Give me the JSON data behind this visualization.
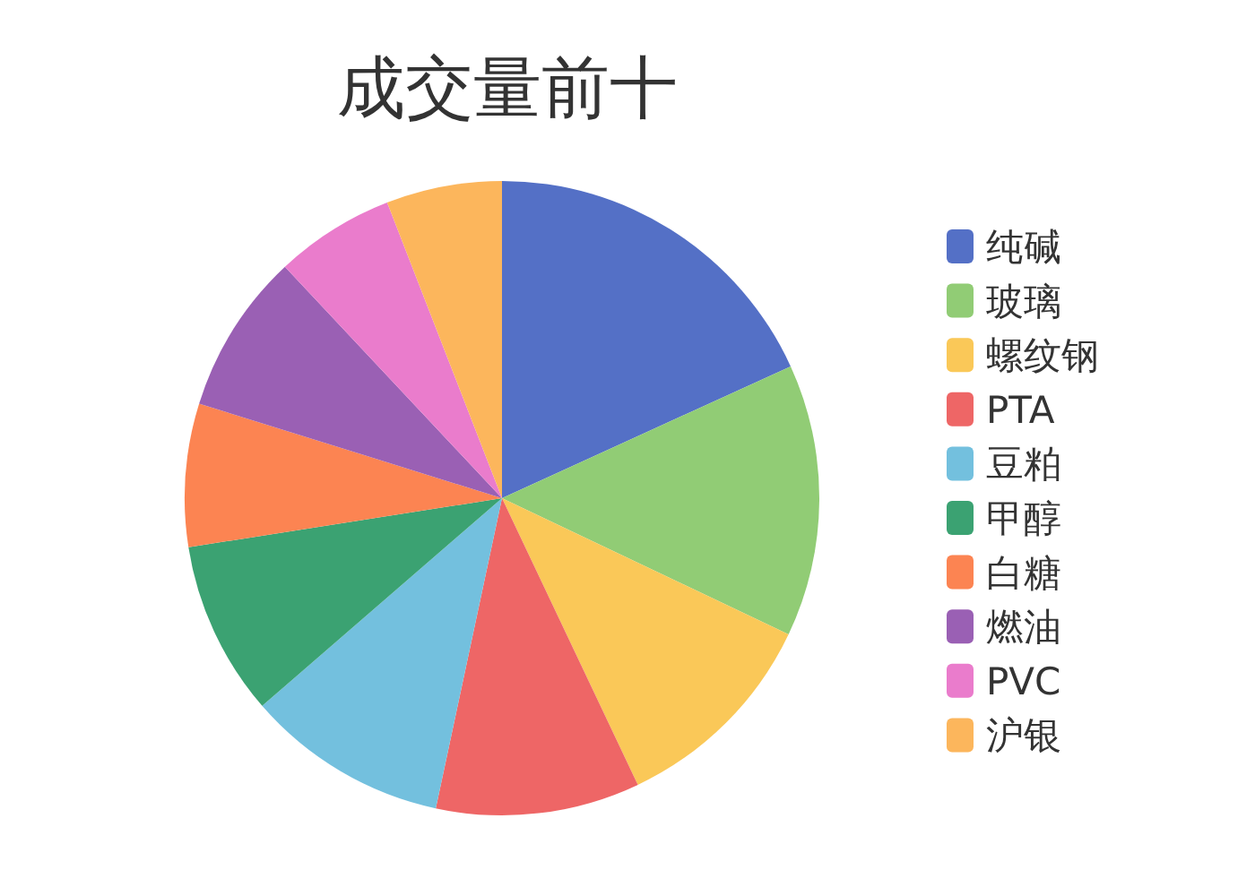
{
  "chart_data": {
    "type": "pie",
    "title": "成交量前十",
    "categories": [
      "纯碱",
      "玻璃",
      "螺纹钢",
      "PTA",
      "豆粕",
      "甲醇",
      "白糖",
      "燃油",
      "PVC",
      "沪银"
    ],
    "values": [
      18.2,
      13.9,
      10.9,
      10.4,
      10.3,
      8.9,
      7.3,
      8.2,
      6.1,
      5.9
    ],
    "colors": [
      "#5470c6",
      "#91cc75",
      "#fac858",
      "#ee6666",
      "#73c0de",
      "#3ba272",
      "#fc8452",
      "#9a60b4",
      "#ea7ccc",
      "#fcb65c"
    ],
    "legend": "right"
  }
}
